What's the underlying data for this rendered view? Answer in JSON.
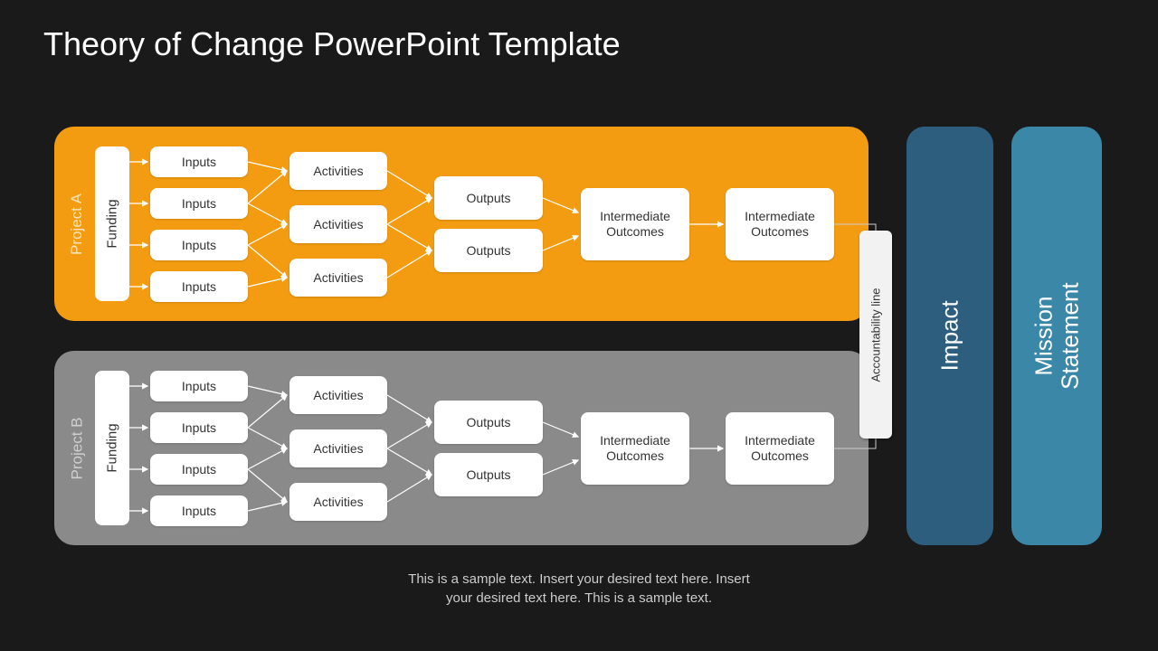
{
  "title": "Theory of Change PowerPoint Template",
  "colors": {
    "background": "#1a1a1a",
    "panelA": "#f39c12",
    "panelB": "#8a8a8a",
    "impact": "#2d5e7e",
    "mission": "#3b87a8",
    "box_bg": "#ffffff",
    "box_text": "#333333",
    "panelA_label": "#fce4b8",
    "panelB_label": "#cfcfcf",
    "arrow": "#ffffff",
    "connect": "#cccccc"
  },
  "projects": [
    {
      "id": "A",
      "label": "Project A",
      "funding": "Funding",
      "inputs": [
        "Inputs",
        "Inputs",
        "Inputs",
        "Inputs"
      ],
      "activities": [
        "Activities",
        "Activities",
        "Activities"
      ],
      "outputs": [
        "Outputs",
        "Outputs"
      ],
      "intermediate": [
        "Intermediate Outcomes",
        "Intermediate Outcomes"
      ]
    },
    {
      "id": "B",
      "label": "Project B",
      "funding": "Funding",
      "inputs": [
        "Inputs",
        "Inputs",
        "Inputs",
        "Inputs"
      ],
      "activities": [
        "Activities",
        "Activities",
        "Activities"
      ],
      "outputs": [
        "Outputs",
        "Outputs"
      ],
      "intermediate": [
        "Intermediate Outcomes",
        "Intermediate Outcomes"
      ]
    }
  ],
  "accountability": "Accountability line",
  "impact": "Impact",
  "mission_line1": "Mission",
  "mission_line2": "Statement",
  "footer_line1": "This is a sample text. Insert your desired text here. Insert",
  "footer_line2": "your desired text here. This is a sample text.",
  "layout": {
    "input_y": [
      22,
      68,
      114,
      160
    ],
    "act_y": [
      28,
      87,
      146
    ],
    "out_y": [
      55,
      113
    ]
  }
}
